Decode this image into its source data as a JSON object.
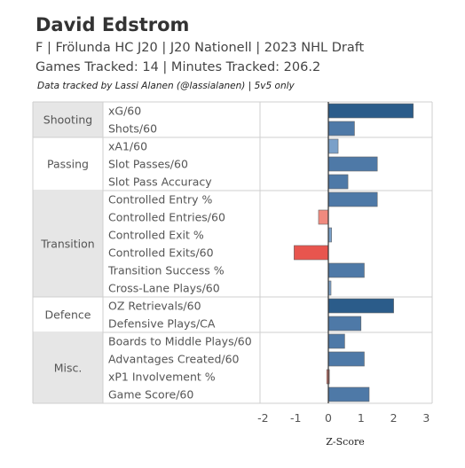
{
  "header": {
    "title": "David Edstrom",
    "subtitle": "F | Frölunda HC J20 | J20 Nationell | 2023 NHL Draft",
    "games_line": "Games Tracked: 14 | Minutes Tracked: 206.2",
    "credit": "Data tracked by Lassi Alanen (@lassialanen) | 5v5 only"
  },
  "colors": {
    "positive_strong": "#2b5c8a",
    "positive": "#4e79a7",
    "positive_light": "#7aa0c9",
    "negative_strong": "#e8554e",
    "negative_light": "#f08a7e",
    "group_shaded": "#e6e6e6"
  },
  "chart_data": {
    "type": "bar",
    "orientation": "horizontal",
    "xlabel": "Z-Score",
    "xlim": [
      -2,
      3
    ],
    "xticks": [
      -2,
      -1,
      0,
      1,
      2,
      3
    ],
    "groups": [
      {
        "name": "Shooting",
        "shaded": true,
        "metrics": [
          {
            "label": "xG/60",
            "value": 2.6
          },
          {
            "label": "Shots/60",
            "value": 0.8
          }
        ]
      },
      {
        "name": "Passing",
        "shaded": false,
        "metrics": [
          {
            "label": "xA1/60",
            "value": 0.3
          },
          {
            "label": "Slot Passes/60",
            "value": 1.5
          },
          {
            "label": "Slot Pass Accuracy",
            "value": 0.6
          }
        ]
      },
      {
        "name": "Transition",
        "shaded": true,
        "metrics": [
          {
            "label": "Controlled Entry %",
            "value": 1.5
          },
          {
            "label": "Controlled Entries/60",
            "value": -0.3
          },
          {
            "label": "Controlled Exit %",
            "value": 0.1
          },
          {
            "label": "Controlled Exits/60",
            "value": -1.05
          },
          {
            "label": "Transition Success %",
            "value": 1.1
          },
          {
            "label": "Cross-Lane Plays/60",
            "value": 0.08
          }
        ]
      },
      {
        "name": "Defence",
        "shaded": false,
        "metrics": [
          {
            "label": "OZ Retrievals/60",
            "value": 2.0
          },
          {
            "label": "Defensive Plays/CA",
            "value": 1.0
          }
        ]
      },
      {
        "name": "Misc.",
        "shaded": true,
        "metrics": [
          {
            "label": "Boards to Middle Plays/60",
            "value": 0.5
          },
          {
            "label": "Advantages Created/60",
            "value": 1.1
          },
          {
            "label": "xP1 Involvement %",
            "value": -0.05
          },
          {
            "label": "Game Score/60",
            "value": 1.25
          }
        ]
      }
    ]
  }
}
